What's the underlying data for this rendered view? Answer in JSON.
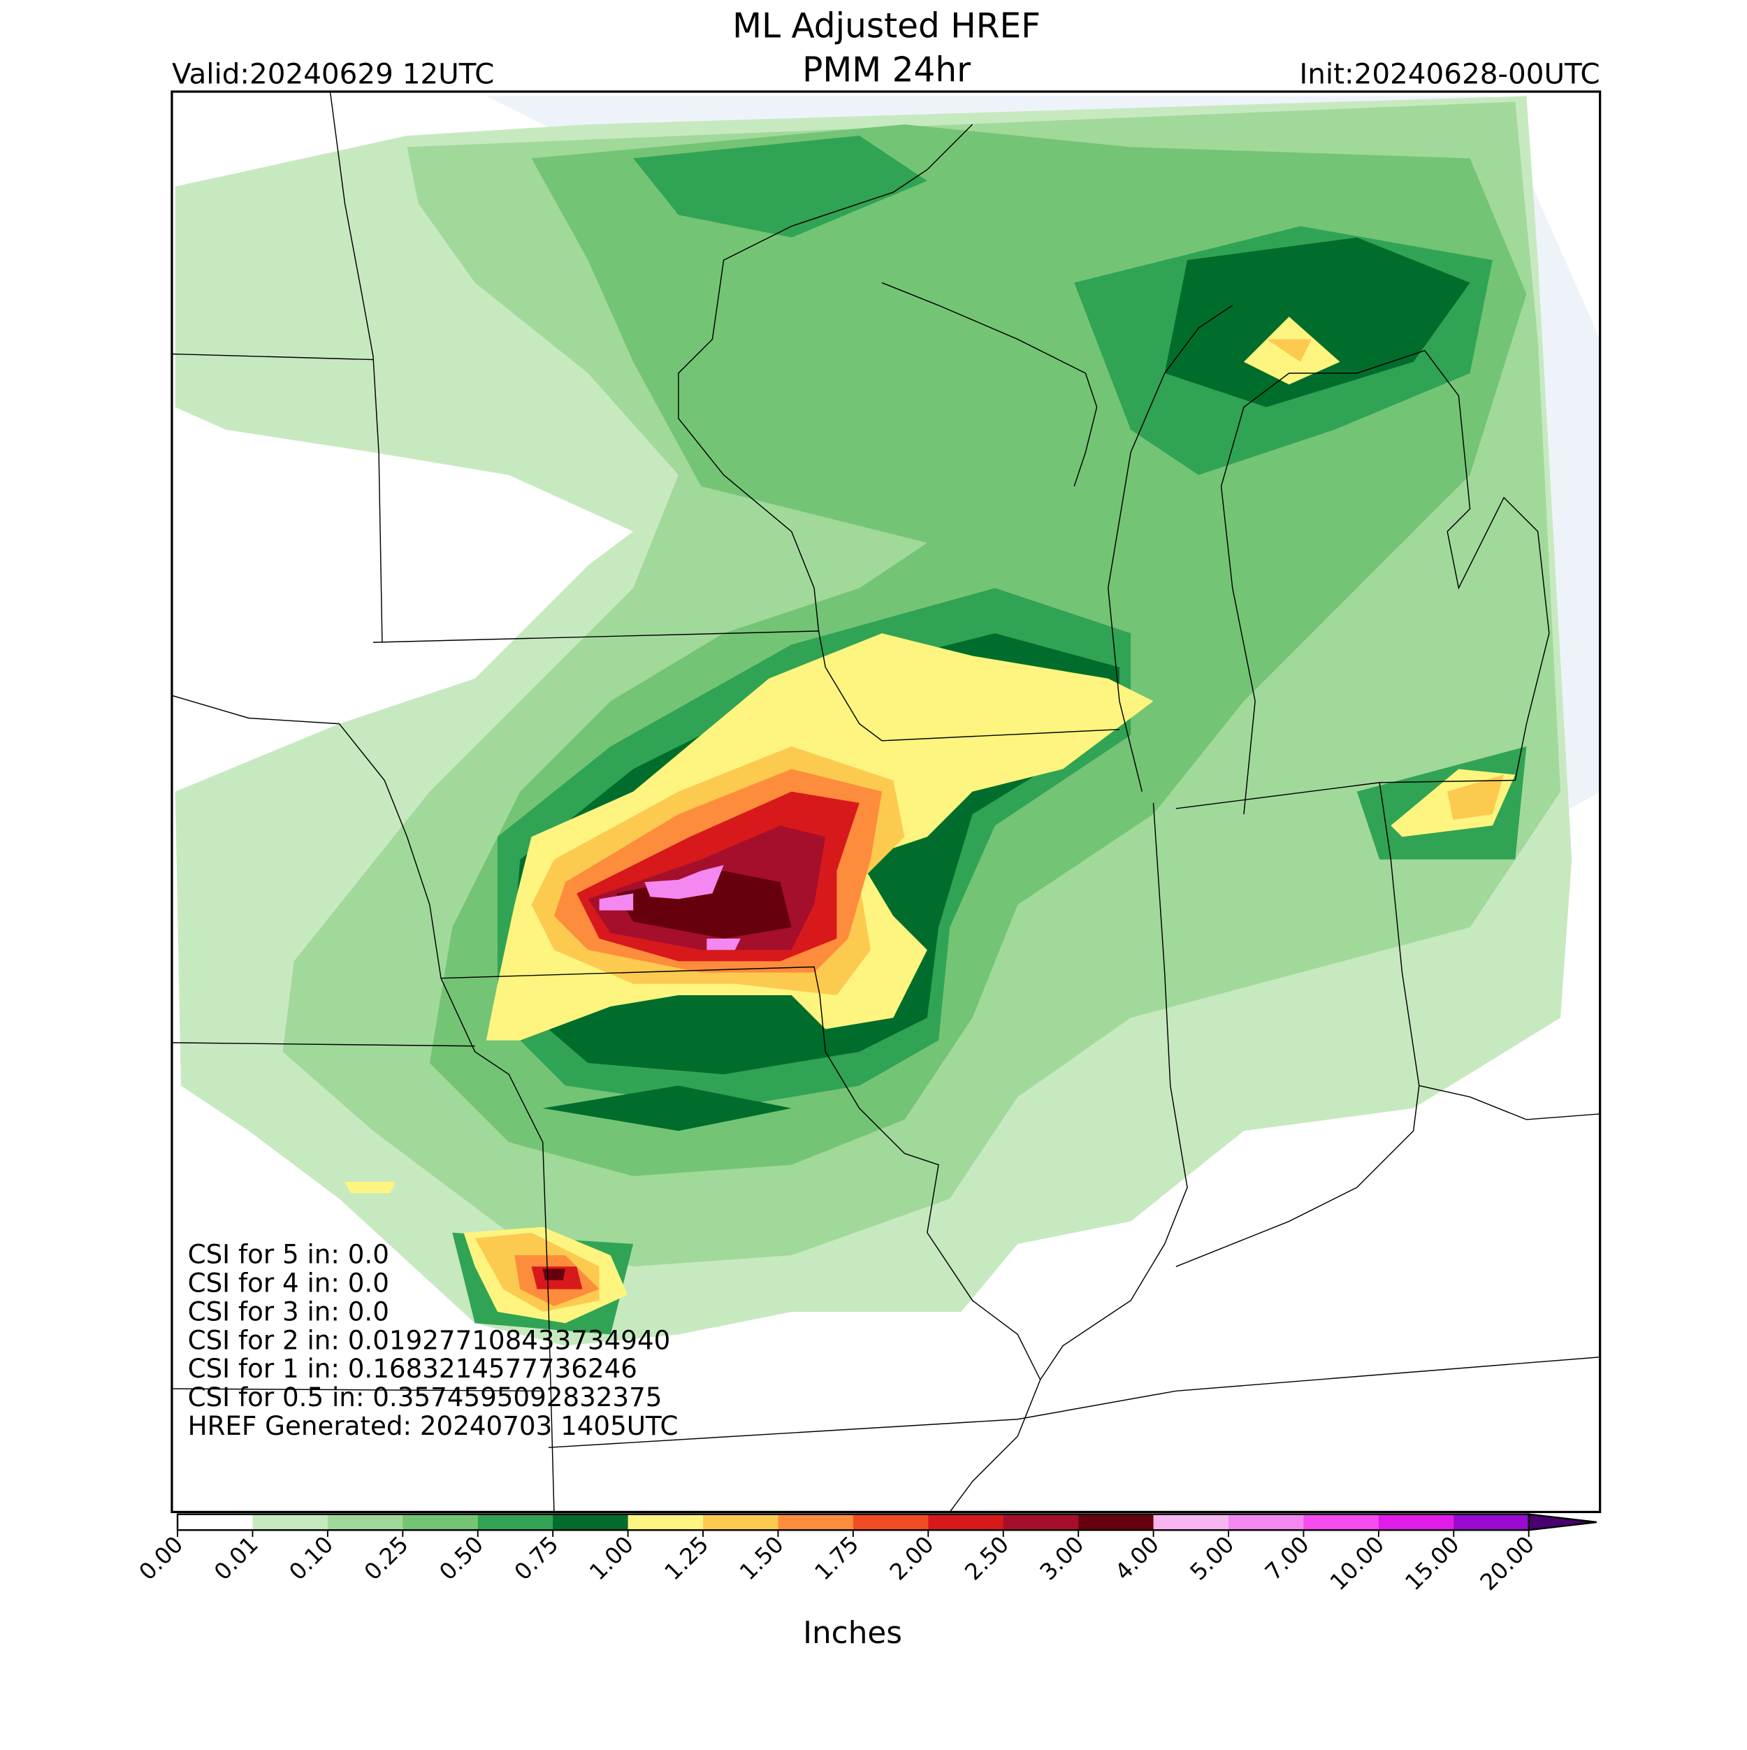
{
  "header": {
    "title": "ML Adjusted HREF",
    "subtitle": "PMM 24hr",
    "valid": "Valid:20240629 12UTC",
    "init": "Init:20240628-00UTC"
  },
  "stats": [
    "CSI for 5 in: 0.0",
    "CSI for 4 in: 0.0",
    "CSI for 3 in: 0.0",
    "CSI for 2 in: 0.019277108433734940",
    "CSI for 1 in: 0.1683214577736246",
    "CSI for 0.5 in: 0.3574595092832375",
    "HREF Generated: 20240703 1405UTC"
  ],
  "colorbar": {
    "label": "Inches",
    "ticks": [
      {
        "value": 0,
        "label": "0.00"
      },
      0.01,
      {
        "value": 0.1,
        "label": "0.10"
      },
      0.25,
      {
        "value": 0.5,
        "label": "0.50"
      },
      0.75,
      {
        "value": 1,
        "label": "1.00"
      },
      1.25,
      {
        "value": 1.5,
        "label": "1.50"
      },
      1.75,
      {
        "value": 2,
        "label": "2.00"
      },
      {
        "value": 2.5,
        "label": "2.50"
      },
      {
        "value": 3,
        "label": "3.00"
      },
      {
        "value": 4,
        "label": "4.00"
      },
      {
        "value": 5,
        "label": "5.00"
      },
      {
        "value": 7,
        "label": "7.00"
      },
      {
        "value": 10,
        "label": "10.00"
      },
      {
        "value": 15,
        "label": "15.00"
      },
      {
        "value": 20,
        "label": "20.00"
      }
    ],
    "colors": [
      "#ffffff",
      "#c7e9c0",
      "#a1d99b",
      "#74c476",
      "#31a354",
      "#006d2c",
      "#fdf57f",
      "#fdca50",
      "#fd8d3c",
      "#f04e22",
      "#d7191c",
      "#a50f2c",
      "#67000d",
      "#f7b6f0",
      "#f587f0",
      "#f54cf0",
      "#e21ce8",
      "#9a0ad0"
    ],
    "extend_color": "#4b0070"
  }
}
